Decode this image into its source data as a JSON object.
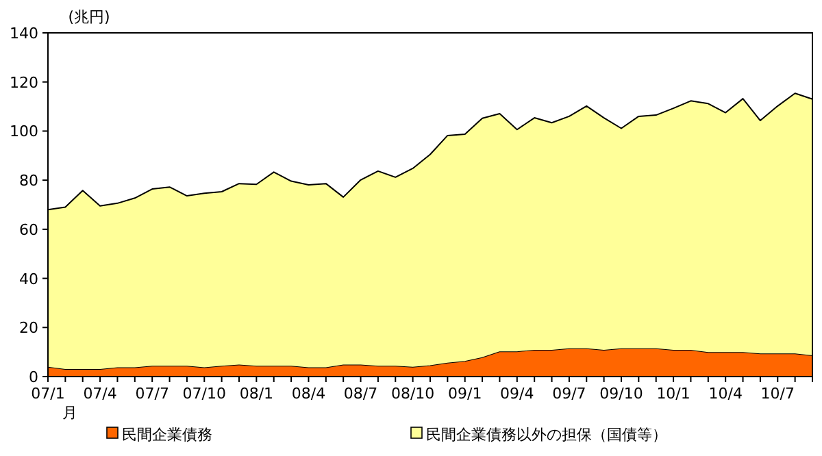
{
  "chart_data": {
    "type": "area",
    "stacked": true,
    "ylabel": "(兆円)",
    "xlabel": "月",
    "categories": [
      "07/1",
      null,
      null,
      "07/4",
      null,
      null,
      "07/7",
      null,
      null,
      "07/10",
      null,
      null,
      "08/1",
      null,
      null,
      "08/4",
      null,
      null,
      "08/7",
      null,
      null,
      "08/10",
      null,
      null,
      "09/1",
      null,
      null,
      "09/4",
      null,
      null,
      "09/7",
      null,
      null,
      "09/10",
      null,
      null,
      "10/1",
      null,
      null,
      "10/4",
      null,
      null,
      "10/7",
      null,
      null
    ],
    "series": [
      {
        "name": "民間企業債務",
        "color": "#ff6600",
        "values": [
          3.7,
          2.8,
          2.8,
          2.8,
          3.5,
          3.5,
          4.1,
          4.1,
          4.1,
          3.5,
          4.1,
          4.6,
          4.1,
          4.1,
          4.1,
          3.5,
          3.5,
          4.6,
          4.6,
          4.1,
          4.1,
          3.7,
          4.3,
          5.4,
          6.1,
          7.6,
          10.0,
          10.0,
          10.6,
          10.6,
          11.2,
          11.2,
          10.6,
          11.2,
          11.2,
          11.2,
          10.6,
          10.6,
          9.7,
          9.7,
          9.7,
          9.1,
          9.1,
          9.1,
          8.4
        ]
      },
      {
        "name": "民間企業債務以外の担保（国債等）",
        "color": "#ffff99",
        "values": [
          64.3,
          66.2,
          73.0,
          66.7,
          67.1,
          69.2,
          72.3,
          73.1,
          69.5,
          71.2,
          71.2,
          74.0,
          74.2,
          79.2,
          75.5,
          74.6,
          75.1,
          68.5,
          75.5,
          79.6,
          77.1,
          81.1,
          86.2,
          92.8,
          92.6,
          97.6,
          97.1,
          90.6,
          94.8,
          92.8,
          94.8,
          99.0,
          94.8,
          89.9,
          94.8,
          95.3,
          98.7,
          101.7,
          101.5,
          97.8,
          103.5,
          95.2,
          101.1,
          106.3,
          104.6
        ]
      }
    ],
    "ylim": [
      0,
      140
    ],
    "yticks": [
      0,
      20,
      40,
      60,
      80,
      100,
      120,
      140
    ],
    "grid": false,
    "legend": "bottom"
  }
}
